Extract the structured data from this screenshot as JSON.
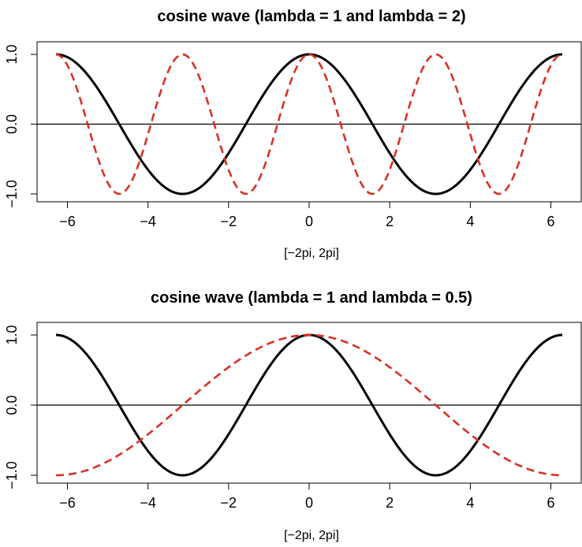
{
  "chart_data": [
    {
      "type": "line",
      "title": "cosine wave (lambda = 1 and lambda = 2)",
      "xlabel": "[−2pi, 2pi]",
      "ylabel": "",
      "xlim": [
        -6.2832,
        6.2832
      ],
      "ylim": [
        -1,
        1
      ],
      "x_ticks": [
        -6,
        -4,
        -2,
        0,
        2,
        4,
        6
      ],
      "x_tick_labels": [
        "−6",
        "−4",
        "−2",
        "0",
        "2",
        "4",
        "6"
      ],
      "y_ticks": [
        -1,
        0,
        1
      ],
      "y_tick_labels": [
        "−1.0",
        "0.0",
        "1.0"
      ],
      "reference_line": 0,
      "series": [
        {
          "color": "#000000",
          "style": "solid",
          "function": "cos(x)",
          "lambda": 1
        },
        {
          "color": "#d93025",
          "style": "dashed",
          "function": "cos(2x)",
          "lambda": 2
        }
      ]
    },
    {
      "type": "line",
      "title": "cosine wave (lambda = 1 and lambda = 0.5)",
      "xlabel": "[−2pi, 2pi]",
      "ylabel": "",
      "xlim": [
        -6.2832,
        6.2832
      ],
      "ylim": [
        -1,
        1
      ],
      "x_ticks": [
        -6,
        -4,
        -2,
        0,
        2,
        4,
        6
      ],
      "x_tick_labels": [
        "−6",
        "−4",
        "−2",
        "0",
        "2",
        "4",
        "6"
      ],
      "y_ticks": [
        -1,
        0,
        1
      ],
      "y_tick_labels": [
        "−1.0",
        "0.0",
        "1.0"
      ],
      "reference_line": 0,
      "series": [
        {
          "color": "#000000",
          "style": "solid",
          "function": "cos(x)",
          "lambda": 1
        },
        {
          "color": "#d93025",
          "style": "dashed",
          "function": "cos(0.5x)",
          "lambda": 0.5
        }
      ]
    }
  ]
}
